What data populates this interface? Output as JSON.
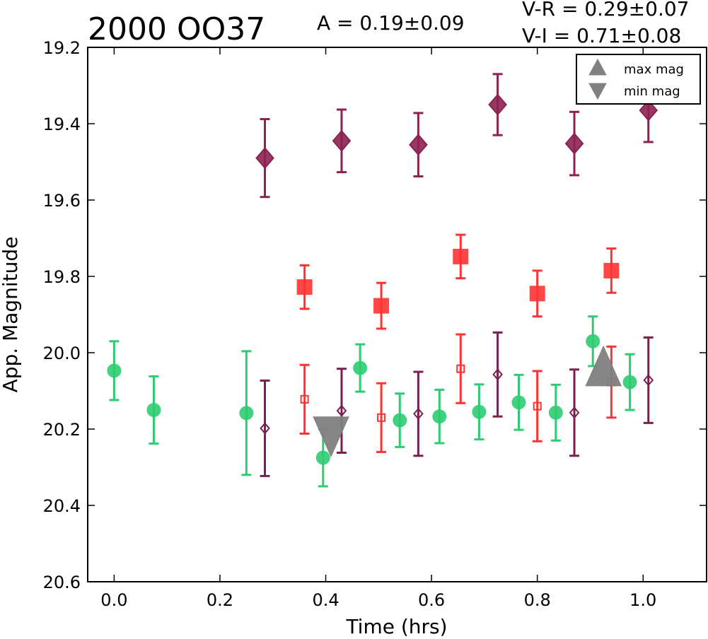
{
  "chart_data": {
    "type": "scatter",
    "title": "2000 OO37",
    "annotations": {
      "amplitude": "A  = 0.19±0.09",
      "v_r": "V-R = 0.29±0.07",
      "v_i": "V-I  = 0.71±0.08"
    },
    "xlabel": "Time (hrs)",
    "ylabel": "App. Magnitude",
    "xlim": [
      -0.05,
      1.12
    ],
    "ylim": [
      20.6,
      19.2
    ],
    "y_inverted": true,
    "grid": false,
    "x_ticks": [
      "0.0",
      "0.2",
      "0.4",
      "0.6",
      "0.8",
      "1.0"
    ],
    "y_ticks": [
      "19.2",
      "19.4",
      "19.6",
      "19.8",
      "20.0",
      "20.2",
      "20.4",
      "20.6"
    ],
    "legend": {
      "position": "top-right",
      "entries": [
        {
          "label": "max mag",
          "marker": "triangle-up",
          "color": "#808080"
        },
        {
          "label": "min mag",
          "marker": "triangle-down",
          "color": "#808080"
        }
      ]
    },
    "series": [
      {
        "marker": "circle",
        "filled": true,
        "color": "#2ecc71",
        "points": [
          {
            "x": 0.0,
            "y": 20.047,
            "err": 0.077
          },
          {
            "x": 0.075,
            "y": 20.15,
            "err": 0.088
          },
          {
            "x": 0.25,
            "y": 20.158,
            "err": 0.162
          },
          {
            "x": 0.395,
            "y": 20.275,
            "err": 0.075
          },
          {
            "x": 0.465,
            "y": 20.04,
            "err": 0.062
          },
          {
            "x": 0.54,
            "y": 20.177,
            "err": 0.07
          },
          {
            "x": 0.615,
            "y": 20.167,
            "err": 0.07
          },
          {
            "x": 0.69,
            "y": 20.155,
            "err": 0.072
          },
          {
            "x": 0.765,
            "y": 20.13,
            "err": 0.072
          },
          {
            "x": 0.835,
            "y": 20.157,
            "err": 0.073
          },
          {
            "x": 0.905,
            "y": 19.97,
            "err": 0.065
          },
          {
            "x": 0.975,
            "y": 20.077,
            "err": 0.073
          }
        ]
      },
      {
        "marker": "square",
        "filled": true,
        "color": "#ff3333",
        "points": [
          {
            "x": 0.36,
            "y": 19.828,
            "err": 0.057
          },
          {
            "x": 0.505,
            "y": 19.877,
            "err": 0.06
          },
          {
            "x": 0.655,
            "y": 19.748,
            "err": 0.057
          },
          {
            "x": 0.8,
            "y": 19.845,
            "err": 0.06
          },
          {
            "x": 0.94,
            "y": 19.785,
            "err": 0.058
          }
        ]
      },
      {
        "marker": "diamond",
        "filled": true,
        "color": "#8b2252",
        "points": [
          {
            "x": 0.285,
            "y": 19.49,
            "err": 0.102
          },
          {
            "x": 0.43,
            "y": 19.445,
            "err": 0.082
          },
          {
            "x": 0.575,
            "y": 19.455,
            "err": 0.083
          },
          {
            "x": 0.725,
            "y": 19.35,
            "err": 0.08
          },
          {
            "x": 0.87,
            "y": 19.452,
            "err": 0.083
          },
          {
            "x": 1.01,
            "y": 19.365,
            "err": 0.083
          }
        ]
      },
      {
        "marker": "square",
        "filled": false,
        "color": "#ff3333",
        "points": [
          {
            "x": 0.36,
            "y": 20.122,
            "err": 0.09
          },
          {
            "x": 0.505,
            "y": 20.17,
            "err": 0.09
          },
          {
            "x": 0.655,
            "y": 20.042,
            "err": 0.09
          },
          {
            "x": 0.8,
            "y": 20.14,
            "err": 0.092
          },
          {
            "x": 0.94,
            "y": 20.077,
            "err": 0.093
          }
        ]
      },
      {
        "marker": "diamond",
        "filled": false,
        "color": "#7a1f4f",
        "points": [
          {
            "x": 0.285,
            "y": 20.198,
            "err": 0.125
          },
          {
            "x": 0.43,
            "y": 20.152,
            "err": 0.11
          },
          {
            "x": 0.575,
            "y": 20.16,
            "err": 0.11
          },
          {
            "x": 0.725,
            "y": 20.057,
            "err": 0.11
          },
          {
            "x": 0.87,
            "y": 20.157,
            "err": 0.113
          },
          {
            "x": 1.01,
            "y": 20.072,
            "err": 0.112
          }
        ]
      }
    ],
    "extrema_markers": [
      {
        "label": "min mag",
        "marker": "triangle-down",
        "color": "#808080",
        "x": 0.41,
        "y": 20.22
      },
      {
        "label": "max mag",
        "marker": "triangle-up",
        "color": "#808080",
        "x": 0.925,
        "y": 20.035
      }
    ]
  }
}
